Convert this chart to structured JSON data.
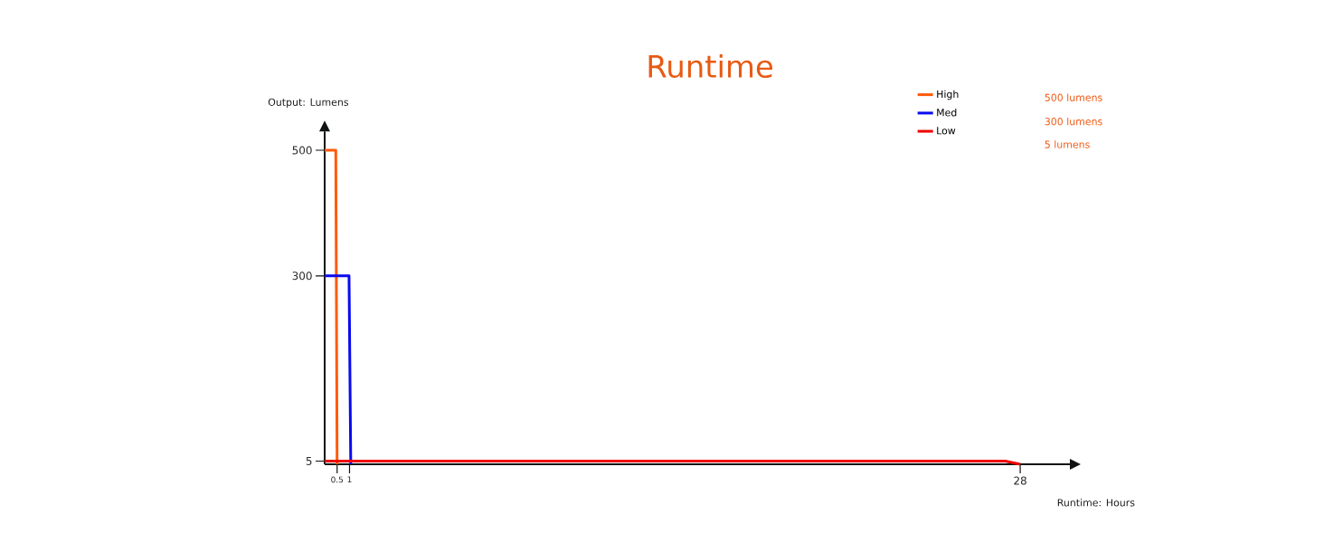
{
  "chart_data": {
    "type": "line",
    "title": "Runtime",
    "xlabel": "Runtime: Hours",
    "ylabel": "Output: Lumens",
    "xlim": [
      0,
      30
    ],
    "ylim": [
      0,
      530
    ],
    "xticks": [
      0.5,
      1,
      28
    ],
    "yticks": [
      5,
      300,
      500
    ],
    "series": [
      {
        "name": "High",
        "color": "#ff5a0a",
        "x": [
          0,
          0.447,
          0.5
        ],
        "values": [
          500,
          500,
          0
        ]
      },
      {
        "name": "Med",
        "color": "#0a0af0",
        "x": [
          0,
          0.98,
          1.05
        ],
        "values": [
          300,
          300,
          0
        ]
      },
      {
        "name": "Low",
        "color": "#f00000",
        "x": [
          0,
          27.4,
          28
        ],
        "values": [
          5,
          5,
          0
        ]
      }
    ],
    "annotations": [
      "500 lumens",
      "300 lumens",
      "5 lumens"
    ],
    "legend": "top right",
    "grid": false
  }
}
